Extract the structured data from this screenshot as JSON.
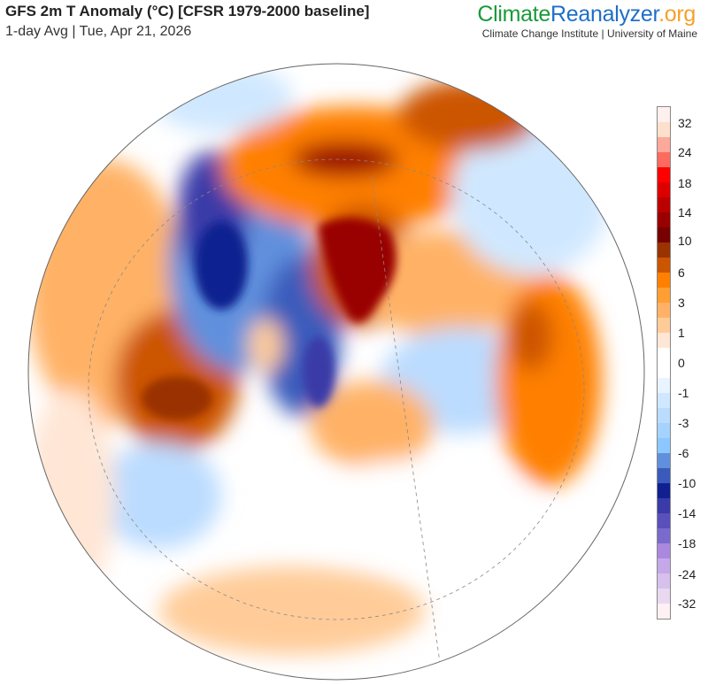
{
  "header": {
    "title": "GFS 2m T Anomaly (°C) [CFSR 1979-2000 baseline]",
    "subtitle": "1-day Avg | Tue, Apr 21, 2026"
  },
  "brand": {
    "part1": "Climate",
    "part2": "Reanalyzer",
    "part3": ".org",
    "institution": "Climate Change Institute | University of Maine"
  },
  "colorbar": {
    "unit": "°C",
    "labels": [
      "32",
      "24",
      "18",
      "14",
      "10",
      "6",
      "3",
      "1",
      "0",
      "-1",
      "-3",
      "-6",
      "-10",
      "-14",
      "-18",
      "-24",
      "-32"
    ],
    "colors": [
      "#fff0ee",
      "#fde0cc",
      "#fca89a",
      "#fd6b5f",
      "#ff0000",
      "#dd0000",
      "#bb0000",
      "#990000",
      "#770000",
      "#993300",
      "#cc5500",
      "#ff8000",
      "#ff9f33",
      "#ffb266",
      "#ffcc99",
      "#ffe6d5",
      "#ffffff",
      "#ffffff",
      "#e8f4ff",
      "#d0e8ff",
      "#bbdcff",
      "#a5d2ff",
      "#8cc8ff",
      "#6090dd",
      "#3a5bbb",
      "#102090",
      "#3a3aa8",
      "#5a50bb",
      "#7a6acc",
      "#aa88dd",
      "#c4a8e8",
      "#d8c0ec",
      "#e8d8f0",
      "#fff0f4"
    ]
  }
}
